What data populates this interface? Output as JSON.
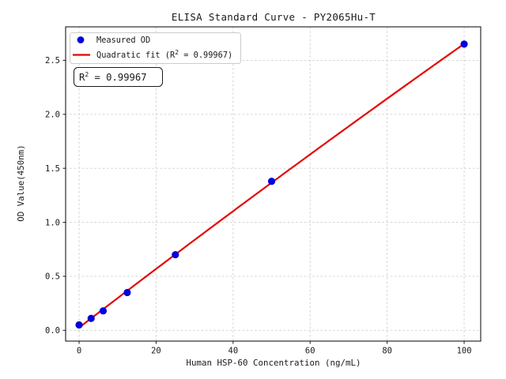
{
  "chart_data": {
    "type": "scatter",
    "title": "ELISA Standard Curve - PY2065Hu-T",
    "xlabel": "Human HSP-60 Concentration (ng/mL)",
    "ylabel": "OD Value(450nm)",
    "xlim": [
      -3.5,
      104.3
    ],
    "ylim": [
      -0.1,
      2.81
    ],
    "xticks": [
      0,
      20,
      40,
      60,
      80,
      100
    ],
    "yticks": [
      0,
      0.5,
      1,
      1.5,
      2,
      2.5
    ],
    "grid": true,
    "grid_style": "dashed",
    "background": "#ffffff",
    "series": [
      {
        "name": "Measured OD",
        "type": "scatter",
        "marker": "circle",
        "color": "#0202dd",
        "x": [
          0,
          3.125,
          6.25,
          12.5,
          25,
          50,
          100
        ],
        "y": [
          0.05,
          0.11,
          0.18,
          0.35,
          0.7,
          1.38,
          2.65
        ]
      },
      {
        "name": "Quadratic fit (R² = 0.99967)",
        "type": "quadratic_fit",
        "color": "#e30505",
        "r_squared": 0.99967,
        "x_range": [
          0,
          100
        ]
      }
    ],
    "legend": {
      "position": "upper left",
      "entries": [
        {
          "label": "Measured OD",
          "marker": "circle",
          "color": "#0202dd"
        },
        {
          "label": "Quadratic fit (R² = 0.99967)",
          "label_base": "Quadratic fit (R",
          "label_sup": "2",
          "label_rest": " = 0.99967)",
          "marker": "line",
          "color": "#e30505"
        }
      ]
    },
    "annotation": {
      "text": "R² = 0.99967",
      "base": "R",
      "sup": "2",
      "rest": " = 0.99967"
    }
  }
}
